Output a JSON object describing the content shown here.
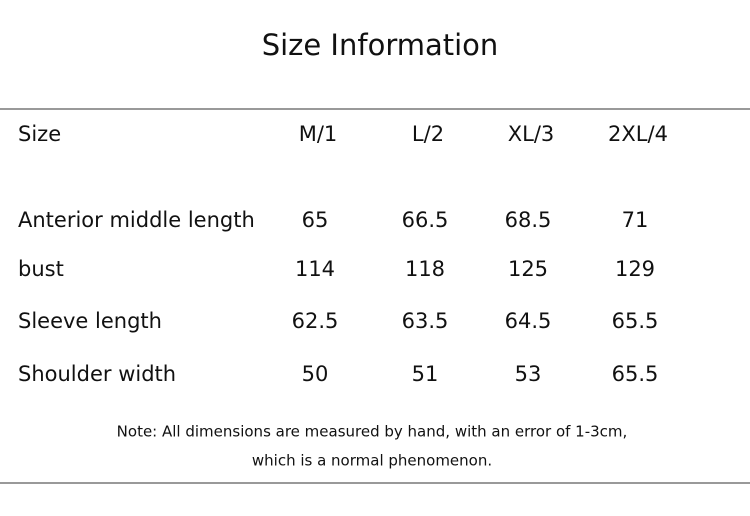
{
  "header": {
    "title": "Size Information"
  },
  "table": {
    "columns": [
      "Size",
      "M/1",
      "L/2",
      "XL/3",
      "2XL/4"
    ],
    "rows": [
      [
        "Anterior middle length",
        65,
        66.5,
        68.5,
        71
      ],
      [
        "bust",
        114,
        118,
        125,
        129
      ],
      [
        "Sleeve length",
        62.5,
        63.5,
        64.5,
        65.5
      ],
      [
        "Shoulder width",
        50,
        51,
        53,
        65.5
      ]
    ]
  },
  "note": {
    "lines": [
      "Note: All dimensions are measured by hand, with an error of 1-3cm,",
      "which is a normal phenomenon."
    ]
  }
}
